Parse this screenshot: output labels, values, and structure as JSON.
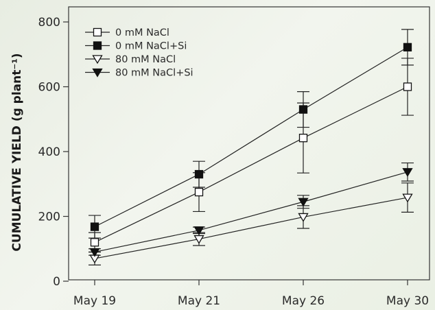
{
  "chart_data": {
    "type": "line",
    "categories": [
      "May 19",
      "May 21",
      "May 26",
      "May 30"
    ],
    "ylabel": "CUMULATIVE YIELD (g plant⁻¹)",
    "xlabel": "",
    "ylim": [
      0,
      800
    ],
    "yticks": [
      "0",
      "200",
      "400",
      "600",
      "800"
    ],
    "grid": false,
    "legend_position": "top-left",
    "series": [
      {
        "name": "0 mM NaCl",
        "marker": "square-open",
        "values": [
          120,
          275,
          442,
          600
        ],
        "err_low": [
          30,
          60,
          108,
          88
        ],
        "err_high": [
          30,
          60,
          108,
          88
        ]
      },
      {
        "name": "0 mM NaCl+Si",
        "marker": "square-filled",
        "values": [
          168,
          330,
          530,
          722
        ],
        "err_low": [
          35,
          40,
          55,
          55
        ],
        "err_high": [
          35,
          40,
          55,
          55
        ]
      },
      {
        "name": "80 mM NaCl",
        "marker": "triangle-down-open",
        "values": [
          70,
          130,
          198,
          258
        ],
        "err_low": [
          20,
          20,
          35,
          45
        ],
        "err_high": [
          20,
          20,
          35,
          45
        ]
      },
      {
        "name": "80 mM NaCl+Si",
        "marker": "triangle-down-filled",
        "values": [
          90,
          157,
          245,
          337
        ],
        "err_low": [
          10,
          10,
          20,
          28
        ],
        "err_high": [
          10,
          10,
          20,
          28
        ]
      }
    ]
  }
}
